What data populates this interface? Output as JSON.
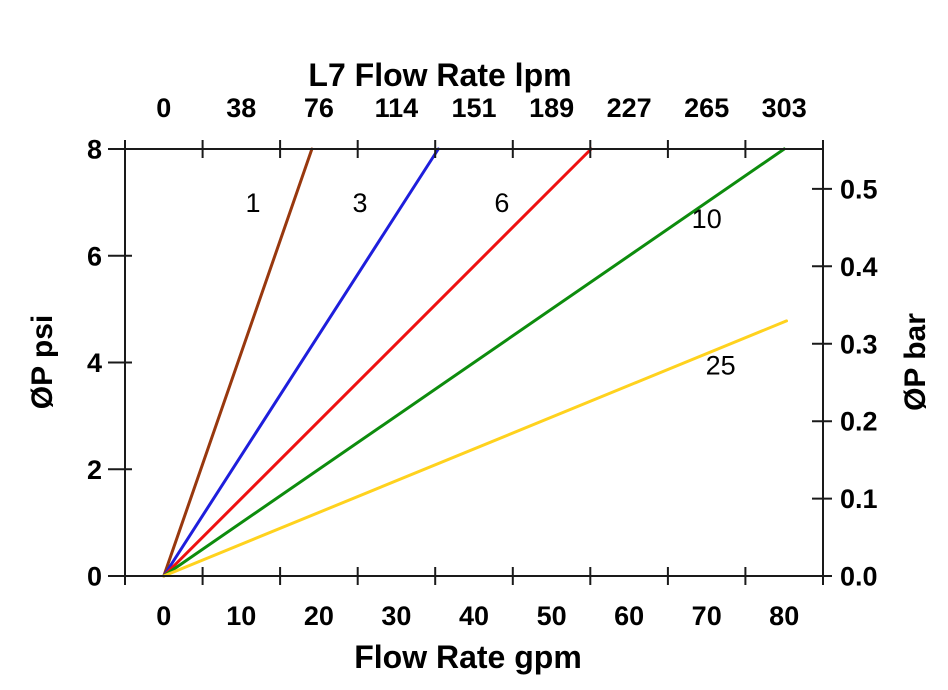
{
  "chart_data": {
    "type": "line",
    "title_top": "L7 Flow Rate lpm",
    "xlabel_bottom": "Flow Rate gpm",
    "ylabel_left": "ØP psi",
    "ylabel_right": "ØP bar",
    "grid": false,
    "legend": "inline labels on lines",
    "x_axis_bottom": {
      "unit": "gpm",
      "range": [
        -5,
        85
      ],
      "label_positions_gpm": [
        0,
        10,
        20,
        30,
        40,
        50,
        60,
        70,
        80
      ],
      "tick_labels": [
        "0",
        "10",
        "20",
        "30",
        "40",
        "50",
        "60",
        "70",
        "80"
      ],
      "boundary_ticks_gpm": [
        -5,
        5,
        15,
        25,
        35,
        45,
        55,
        65,
        75,
        85
      ]
    },
    "x_axis_top": {
      "unit": "lpm",
      "tick_labels": [
        "0",
        "38",
        "76",
        "114",
        "151",
        "189",
        "227",
        "265",
        "303"
      ],
      "label_positions_gpm": [
        0,
        10,
        20,
        30,
        40,
        50,
        60,
        70,
        80
      ],
      "boundary_ticks_gpm": [
        -5,
        5,
        15,
        25,
        35,
        45,
        55,
        65,
        75,
        85
      ],
      "note": "lpm labels are gpm tick positions converted at 3.785 lpm per gpm"
    },
    "y_axis_left": {
      "unit": "psi",
      "range": [
        0,
        8
      ],
      "ticks": [
        0,
        2,
        4,
        6,
        8
      ],
      "tick_labels": [
        "0",
        "2",
        "4",
        "6",
        "8"
      ]
    },
    "y_axis_right": {
      "unit": "bar",
      "ticks": [
        0.0,
        0.1,
        0.2,
        0.3,
        0.4,
        0.5
      ],
      "tick_labels": [
        "0.0",
        "0.1",
        "0.2",
        "0.3",
        "0.4",
        "0.5"
      ],
      "psi_per_bar": 14.504
    },
    "series": [
      {
        "label": "1",
        "color": "#98380E",
        "points_gpm_psi": [
          [
            0,
            0
          ],
          [
            19.1,
            8
          ]
        ],
        "label_pos_gpm_psi": [
          11.5,
          7.0
        ]
      },
      {
        "label": "3",
        "color": "#1E1EDC",
        "points_gpm_psi": [
          [
            0,
            0
          ],
          [
            35.4,
            8
          ]
        ],
        "label_pos_gpm_psi": [
          25.3,
          7.0
        ]
      },
      {
        "label": "6",
        "color": "#EE1111",
        "points_gpm_psi": [
          [
            0,
            0
          ],
          [
            55.1,
            8
          ]
        ],
        "label_pos_gpm_psi": [
          43.6,
          7.0
        ]
      },
      {
        "label": "10",
        "color": "#0D8C0D",
        "points_gpm_psi": [
          [
            0,
            0
          ],
          [
            80.0,
            8
          ]
        ],
        "label_pos_gpm_psi": [
          70.0,
          6.7
        ]
      },
      {
        "label": "25",
        "color": "#FFD21E",
        "points_gpm_psi": [
          [
            0,
            0
          ],
          [
            80.3,
            4.78
          ]
        ],
        "label_pos_gpm_psi": [
          71.8,
          3.95
        ]
      }
    ],
    "frame_color": "#1A1A1A"
  }
}
